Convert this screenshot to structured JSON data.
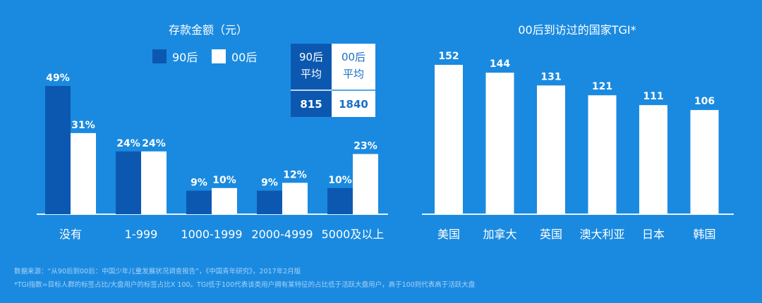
{
  "colors": {
    "background": "#1a8ae0",
    "series_90": "#0c58b0",
    "series_00": "#ffffff",
    "axis": "#e6f2ff",
    "text": "#ffffff"
  },
  "chart_data": [
    {
      "type": "bar",
      "title": "存款金额（元）",
      "categories": [
        "没有",
        "1-999",
        "1000-1999",
        "2000-4999",
        "5000及以上"
      ],
      "series": [
        {
          "name": "90后",
          "values": [
            49,
            24,
            9,
            9,
            10
          ],
          "labels": [
            "49%",
            "24%",
            "9%",
            "9%",
            "10%"
          ]
        },
        {
          "name": "00后",
          "values": [
            31,
            24,
            10,
            12,
            23
          ],
          "labels": [
            "31%",
            "24%",
            "10%",
            "12%",
            "23%"
          ]
        }
      ],
      "ylim": [
        0,
        50
      ],
      "legend": "top",
      "average_table": {
        "headers": [
          [
            "90后",
            "平均"
          ],
          [
            "00后",
            "平均"
          ]
        ],
        "values": [
          "815",
          "1840"
        ]
      }
    },
    {
      "type": "bar",
      "title": "00后到访过的国家TGI*",
      "categories": [
        "美国",
        "加拿大",
        "英国",
        "澳大利亚",
        "日本",
        "韩国"
      ],
      "values": [
        152,
        144,
        131,
        121,
        111,
        106
      ],
      "labels": [
        "152",
        "144",
        "131",
        "121",
        "111",
        "106"
      ],
      "ylim": [
        0,
        160
      ]
    }
  ],
  "footnotes": [
    "数据来源：“从90后到00后：中国少年儿童发展状况调查报告”，《中国青年研究》，2017年2月版",
    "*TGI指数=目标人群的标签占比/大盘用户的标签占比X 100。TGI低于100代表该类用户拥有某特征的占比低于活跃大盘用户，高于100则代表高于活跃大盘"
  ]
}
